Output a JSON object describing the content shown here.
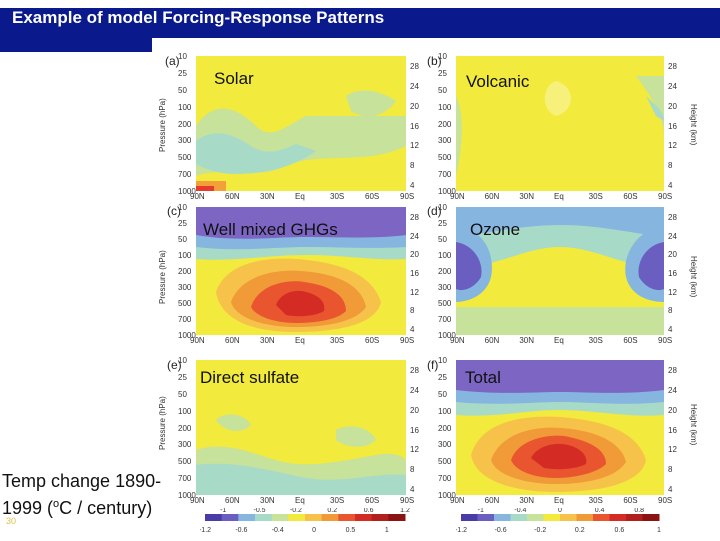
{
  "slide": {
    "title": "Example of model Forcing-Response Patterns",
    "caption_line1": "Temp change 1890-",
    "caption_line2_a": "1999 (",
    "caption_sup": "o",
    "caption_line2_b": "C / century)",
    "slide_number": "30"
  },
  "panels": [
    {
      "letter": "(a)",
      "title": "Solar"
    },
    {
      "letter": "(b)",
      "title": "Volcanic"
    },
    {
      "letter": "(c)",
      "title": "Well mixed GHGs"
    },
    {
      "letter": "(d)",
      "title": "Ozone"
    },
    {
      "letter": "(e)",
      "title": "Direct sulfate"
    },
    {
      "letter": "(f)",
      "title": "Total"
    }
  ],
  "axes": {
    "y_label_left": "Pressure (hPa)",
    "y_label_right": "Height (km)",
    "pressure_ticks": [
      "10",
      "25",
      "50",
      "100",
      "200",
      "300",
      "500",
      "700",
      "1000"
    ],
    "height_ticks": [
      "28",
      "24",
      "20",
      "16",
      "12",
      "8",
      "4"
    ],
    "lat_ticks": [
      "90N",
      "60N",
      "30N",
      "Eq",
      "30S",
      "60S",
      "90S"
    ]
  },
  "colorbar_left": [
    "-1.2",
    "-1",
    "-0.6",
    "-0.5",
    "-0.4",
    "-0.2",
    "0",
    "0.2",
    "0.5",
    "0.6",
    "1",
    "1.2"
  ],
  "colorbar_right": [
    "-1.2",
    "-1",
    "-0.6",
    "-0.4",
    "-0.2",
    "0",
    "0.2",
    "0.4",
    "0.6",
    "0.8",
    "1"
  ],
  "colors": {
    "title_bar": "#0a1a8c"
  }
}
